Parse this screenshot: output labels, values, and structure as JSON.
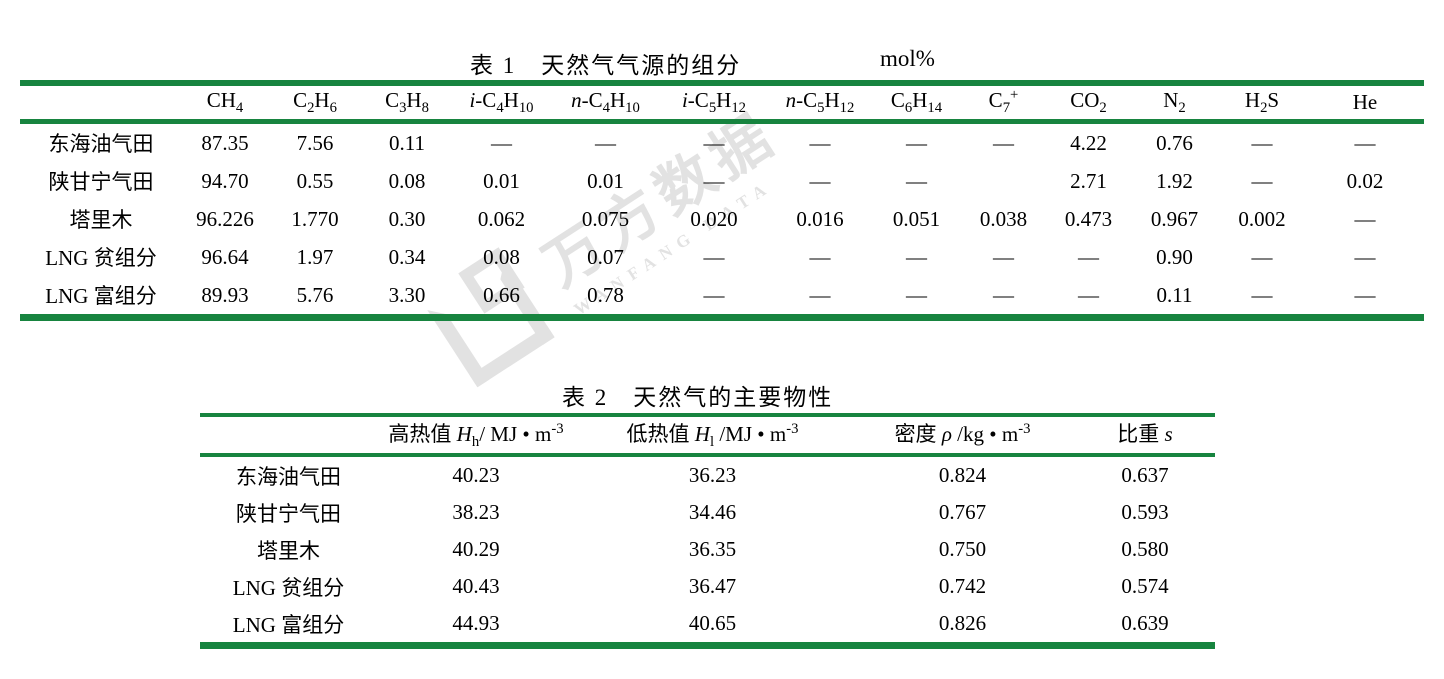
{
  "colors": {
    "rule_green": "#17843f",
    "watermark_gray": "#e2e2e2"
  },
  "watermark": {
    "logo_icon": "wanfang-logo-icon",
    "text_cn": "万方数据",
    "text_en": "WANFANG DATA"
  },
  "table1": {
    "title": "表 1　天然气气源的组分",
    "unit": "mol%",
    "columns": [
      {
        "prefix": "",
        "formula": "CH4"
      },
      {
        "prefix": "",
        "formula": "C2H6"
      },
      {
        "prefix": "",
        "formula": "C3H8"
      },
      {
        "prefix": "i-",
        "formula": "C4H10"
      },
      {
        "prefix": "n-",
        "formula": "C4H10"
      },
      {
        "prefix": "i-",
        "formula": "C5H12"
      },
      {
        "prefix": "n-",
        "formula": "C5H12"
      },
      {
        "prefix": "",
        "formula": "C6H14"
      },
      {
        "prefix": "",
        "formula": "C7+"
      },
      {
        "prefix": "",
        "formula": "CO2"
      },
      {
        "prefix": "",
        "formula": "N2"
      },
      {
        "prefix": "",
        "formula": "H2S"
      },
      {
        "prefix": "",
        "formula": "He"
      }
    ],
    "rows": [
      [
        "东海油气田",
        "87.35",
        "7.56",
        "0.11",
        "—",
        "—",
        "—",
        "—",
        "—",
        "—",
        "4.22",
        "0.76",
        "—",
        "—"
      ],
      [
        "陕甘宁气田",
        "94.70",
        "0.55",
        "0.08",
        "0.01",
        "0.01",
        "—",
        "—",
        "—",
        "",
        "2.71",
        "1.92",
        "—",
        "0.02"
      ],
      [
        "塔里木",
        "96.226",
        "1.770",
        "0.30",
        "0.062",
        "0.075",
        "0.020",
        "0.016",
        "0.051",
        "0.038",
        "0.473",
        "0.967",
        "0.002",
        "—"
      ],
      [
        "LNG 贫组分",
        "96.64",
        "1.97",
        "0.34",
        "0.08",
        "0.07",
        "—",
        "—",
        "—",
        "—",
        "—",
        "0.90",
        "—",
        "—"
      ],
      [
        "LNG 富组分",
        "89.93",
        "5.76",
        "3.30",
        "0.66",
        "0.78",
        "—",
        "—",
        "—",
        "—",
        "—",
        "0.11",
        "—",
        "—"
      ]
    ]
  },
  "table2": {
    "title": "表 2　天然气的主要物性",
    "columns": [
      {
        "label": "高热值 ",
        "symbol": "H",
        "sub": "h",
        "unit": "/ MJ • m",
        "sup": "-3"
      },
      {
        "label": "低热值 ",
        "symbol": "H",
        "sub": "l",
        "unit": " /MJ • m",
        "sup": "-3"
      },
      {
        "label": "密度 ",
        "symbol": "ρ",
        "sub": "",
        "unit": " /kg • m",
        "sup": "-3"
      },
      {
        "label": "比重 ",
        "symbol": "s",
        "sub": "",
        "unit": "",
        "sup": ""
      }
    ],
    "rows": [
      [
        "东海油气田",
        "40.23",
        "36.23",
        "0.824",
        "0.637"
      ],
      [
        "陕甘宁气田",
        "38.23",
        "34.46",
        "0.767",
        "0.593"
      ],
      [
        "塔里木",
        "40.29",
        "36.35",
        "0.750",
        "0.580"
      ],
      [
        "LNG 贫组分",
        "40.43",
        "36.47",
        "0.742",
        "0.574"
      ],
      [
        "LNG 富组分",
        "44.93",
        "40.65",
        "0.826",
        "0.639"
      ]
    ]
  }
}
